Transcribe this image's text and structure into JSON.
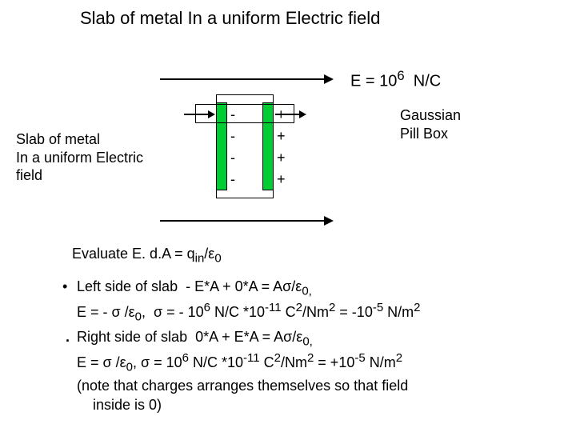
{
  "title": "Slab of metal In a uniform Electric field",
  "field_label_html": "E = 10<sup>6</sup>&nbsp; N/C",
  "left_caption": "Slab of metal\nIn a uniform Electric\nfield",
  "pillbox_label": "Gaussian\nPill Box",
  "evaluate_html": "Evaluate E. d.A = q<sub>in</sub>/&epsilon;<sub>0</sub>",
  "left_bullet_html": "Left side of slab &nbsp;- E*A + 0*A = A&sigma;/&epsilon;<sub>0,</sub><br>E = - &sigma; /&epsilon;<sub>0</sub>,&nbsp; &sigma; = - 10<sup>6</sup> N/C *10<sup>-11</sup> C<sup>2</sup>/Nm<sup>2</sup> = -10<sup>-5</sup> N/m<sup>2</sup>",
  "right_bullet_html": "Right side of slab &nbsp;0*A + E*A = A&sigma;/&epsilon;<sub>0,</sub><br>E = &sigma; /&epsilon;<sub>0</sub>, &sigma; = 10<sup>6</sup> N/C *10<sup>-11</sup> C<sup>2</sup>/Nm<sup>2</sup> = +10<sup>-5</sup> N/m<sup>2</sup><br>(note that charges arranges themselves so that field<br>&nbsp;&nbsp;&nbsp;&nbsp;inside is 0)",
  "colors": {
    "face": "#00cc33",
    "bg": "#ffffff",
    "ink": "#000000"
  },
  "signs": {
    "minus": "-",
    "plus": "+"
  },
  "bullets": {
    "dot": "•",
    "smalldot": "."
  }
}
